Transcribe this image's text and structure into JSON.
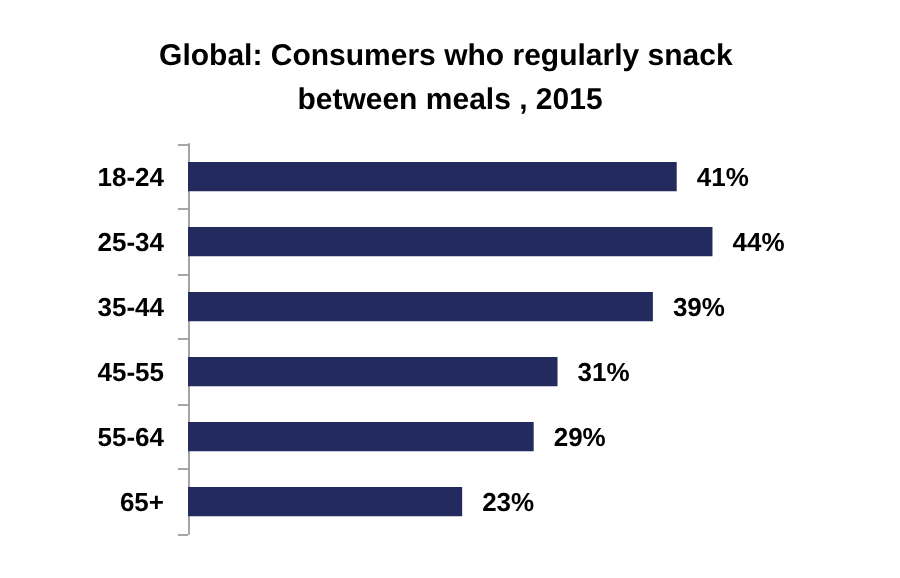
{
  "chart_data": {
    "type": "bar",
    "orientation": "horizontal",
    "title": "Global: Consumers who regularly snack between meals , 2015",
    "categories": [
      "18-24",
      "25-34",
      "35-44",
      "45-55",
      "55-64",
      "65+"
    ],
    "values": [
      41,
      44,
      39,
      31,
      29,
      23
    ],
    "color": "#232a5e",
    "value_labels": [
      "41%",
      "44%",
      "39%",
      "31%",
      "29%",
      "23%"
    ]
  }
}
